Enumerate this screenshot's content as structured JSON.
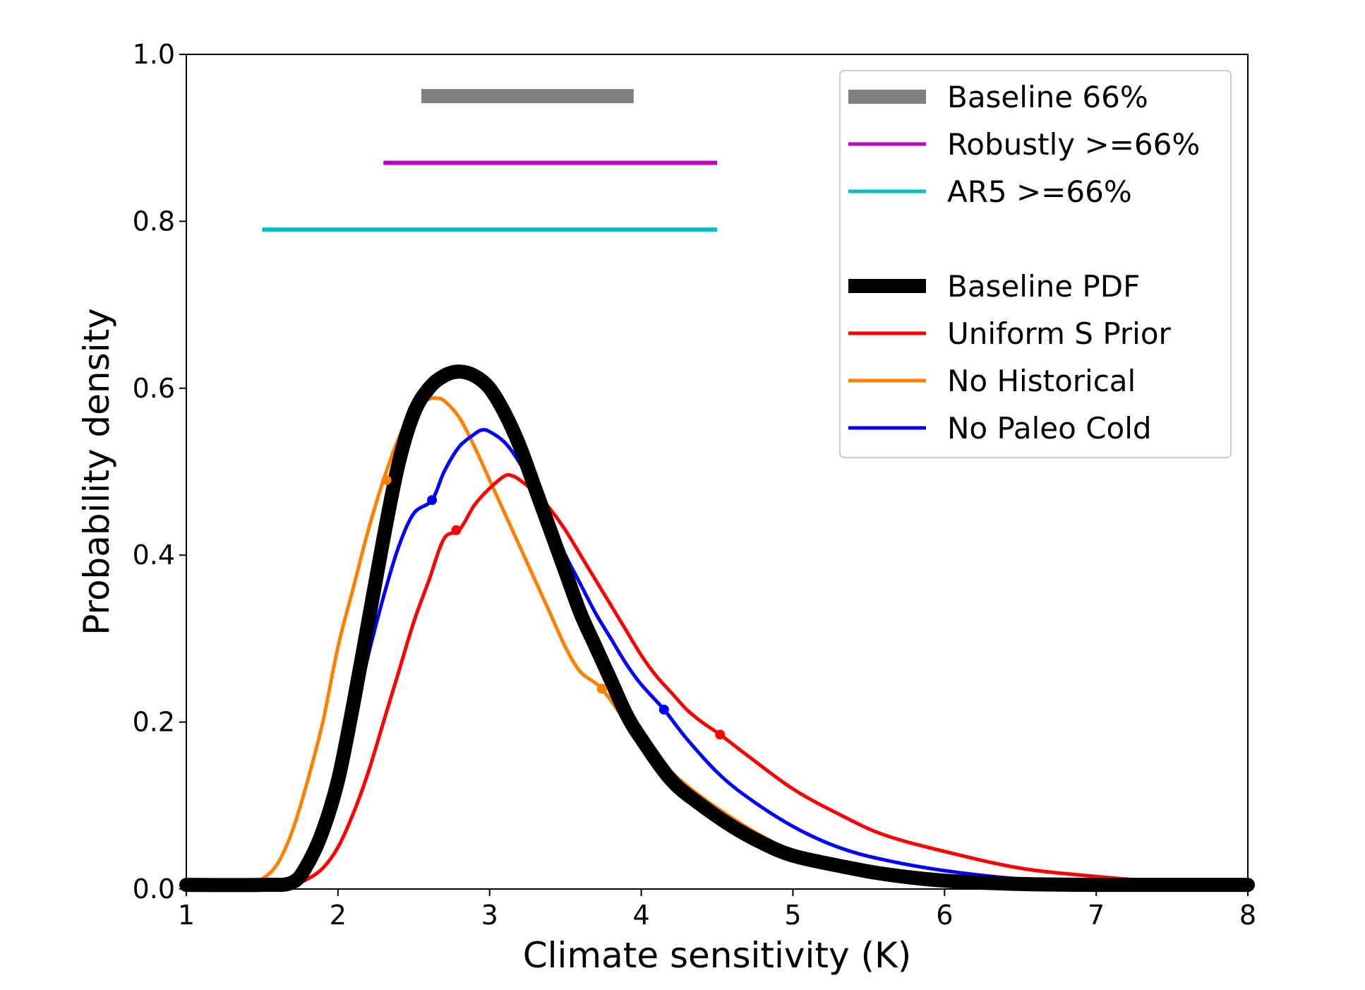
{
  "chart_data": {
    "type": "line",
    "title": "",
    "xlabel": "Climate sensitivity (K)",
    "ylabel": "Probability density",
    "xlim": [
      1,
      8
    ],
    "ylim": [
      0,
      1.0
    ],
    "xticks": [
      1,
      2,
      3,
      4,
      5,
      6,
      7,
      8
    ],
    "xtick_labels": [
      "1",
      "2",
      "3",
      "4",
      "5",
      "6",
      "7",
      "8"
    ],
    "yticks": [
      0,
      0.2,
      0.4,
      0.6,
      0.8,
      1.0
    ],
    "ytick_labels": [
      "0.0",
      "0.2",
      "0.4",
      "0.6",
      "0.8",
      "1.0"
    ],
    "grid": false,
    "legend_position": "top-right",
    "ranges": [
      {
        "name": "Baseline 66%",
        "color": "#808080",
        "x_start": 2.55,
        "x_end": 3.95,
        "y": 0.95
      },
      {
        "name": "Robustly >=66%",
        "color": "#c000c0",
        "x_start": 2.3,
        "x_end": 4.5,
        "y": 0.87
      },
      {
        "name": "AR5 >=66%",
        "color": "#00bfbf",
        "x_start": 1.5,
        "x_end": 4.5,
        "y": 0.79
      }
    ],
    "series": [
      {
        "name": "Baseline PDF",
        "color": "#000000",
        "x": [
          1.0,
          1.5,
          1.7,
          1.8,
          1.9,
          2.0,
          2.1,
          2.2,
          2.3,
          2.4,
          2.5,
          2.6,
          2.7,
          2.8,
          2.9,
          3.0,
          3.1,
          3.2,
          3.3,
          3.4,
          3.5,
          3.6,
          3.7,
          3.8,
          3.9,
          4.0,
          4.2,
          4.4,
          4.6,
          4.8,
          5.0,
          5.3,
          5.6,
          6.0,
          6.5,
          7.0,
          7.5,
          8.0
        ],
        "y": [
          0.005,
          0.005,
          0.008,
          0.03,
          0.07,
          0.13,
          0.22,
          0.32,
          0.42,
          0.51,
          0.57,
          0.6,
          0.615,
          0.62,
          0.615,
          0.6,
          0.57,
          0.53,
          0.48,
          0.43,
          0.38,
          0.33,
          0.29,
          0.25,
          0.21,
          0.18,
          0.13,
          0.1,
          0.075,
          0.055,
          0.04,
          0.028,
          0.018,
          0.01,
          0.006,
          0.005,
          0.005,
          0.005
        ]
      },
      {
        "name": "Uniform S Prior",
        "color": "#ff0000",
        "x": [
          1.0,
          1.5,
          1.7,
          1.8,
          1.9,
          2.0,
          2.1,
          2.2,
          2.3,
          2.4,
          2.5,
          2.6,
          2.7,
          2.8,
          2.9,
          3.0,
          3.1,
          3.15,
          3.2,
          3.3,
          3.4,
          3.5,
          3.6,
          3.7,
          3.8,
          3.9,
          4.0,
          4.1,
          4.2,
          4.3,
          4.4,
          4.52,
          4.7,
          5.0,
          5.3,
          5.6,
          6.0,
          6.5,
          7.0,
          7.5,
          8.0
        ],
        "y": [
          0.005,
          0.005,
          0.006,
          0.012,
          0.025,
          0.05,
          0.09,
          0.14,
          0.2,
          0.26,
          0.32,
          0.37,
          0.42,
          0.43,
          0.46,
          0.48,
          0.495,
          0.495,
          0.49,
          0.475,
          0.455,
          0.43,
          0.4,
          0.37,
          0.34,
          0.31,
          0.28,
          0.255,
          0.235,
          0.215,
          0.2,
          0.185,
          0.16,
          0.12,
          0.09,
          0.065,
          0.045,
          0.025,
          0.015,
          0.008,
          0.005
        ]
      },
      {
        "name": "No Historical",
        "color": "#ff8000",
        "x": [
          1.0,
          1.4,
          1.5,
          1.6,
          1.7,
          1.8,
          1.9,
          2.0,
          2.1,
          2.2,
          2.3,
          2.4,
          2.5,
          2.6,
          2.65,
          2.7,
          2.8,
          2.9,
          3.0,
          3.1,
          3.2,
          3.3,
          3.4,
          3.5,
          3.6,
          3.74,
          3.9,
          4.0,
          4.2,
          4.4,
          4.6,
          4.8,
          5.0,
          5.3,
          5.6,
          6.0,
          6.5,
          7.0,
          7.5,
          8.0
        ],
        "y": [
          0.005,
          0.005,
          0.012,
          0.03,
          0.07,
          0.13,
          0.2,
          0.29,
          0.36,
          0.43,
          0.49,
          0.54,
          0.575,
          0.587,
          0.588,
          0.585,
          0.565,
          0.53,
          0.49,
          0.45,
          0.41,
          0.37,
          0.33,
          0.29,
          0.26,
          0.24,
          0.2,
          0.18,
          0.14,
          0.11,
          0.085,
          0.063,
          0.045,
          0.03,
          0.02,
          0.012,
          0.007,
          0.005,
          0.005,
          0.005
        ]
      },
      {
        "name": "No Paleo Cold",
        "color": "#0000ff",
        "x": [
          1.0,
          1.5,
          1.7,
          1.8,
          1.9,
          2.0,
          2.1,
          2.2,
          2.3,
          2.4,
          2.5,
          2.62,
          2.7,
          2.8,
          2.9,
          2.95,
          3.0,
          3.1,
          3.2,
          3.3,
          3.4,
          3.5,
          3.6,
          3.7,
          3.8,
          3.9,
          4.0,
          4.15,
          4.3,
          4.5,
          4.7,
          5.0,
          5.3,
          5.6,
          6.0,
          6.5,
          7.0,
          7.5,
          8.0
        ],
        "y": [
          0.005,
          0.005,
          0.008,
          0.03,
          0.07,
          0.13,
          0.2,
          0.28,
          0.35,
          0.41,
          0.45,
          0.466,
          0.5,
          0.53,
          0.545,
          0.55,
          0.548,
          0.535,
          0.51,
          0.475,
          0.44,
          0.4,
          0.365,
          0.33,
          0.3,
          0.27,
          0.245,
          0.215,
          0.18,
          0.14,
          0.11,
          0.075,
          0.05,
          0.035,
          0.022,
          0.012,
          0.008,
          0.005,
          0.005
        ]
      }
    ],
    "markers": [
      {
        "series": "No Historical",
        "points": [
          [
            2.32,
            0.49
          ],
          [
            3.74,
            0.24
          ]
        ]
      },
      {
        "series": "No Paleo Cold",
        "points": [
          [
            2.62,
            0.466
          ],
          [
            4.15,
            0.215
          ]
        ]
      },
      {
        "series": "Uniform S Prior",
        "points": [
          [
            2.78,
            0.43
          ],
          [
            4.52,
            0.185
          ]
        ]
      }
    ],
    "legend": [
      {
        "label": "Baseline 66%",
        "color": "#808080",
        "kind": "range"
      },
      {
        "label": "Robustly >=66%",
        "color": "#c000c0",
        "kind": "range"
      },
      {
        "label": "AR5 >=66%",
        "color": "#00bfbf",
        "kind": "range"
      },
      {
        "label": "Baseline PDF",
        "color": "#000000",
        "kind": "pdf"
      },
      {
        "label": "Uniform S Prior",
        "color": "#ff0000",
        "kind": "line"
      },
      {
        "label": "No Historical",
        "color": "#ff8000",
        "kind": "line"
      },
      {
        "label": "No Paleo Cold",
        "color": "#0000ff",
        "kind": "line"
      }
    ]
  }
}
